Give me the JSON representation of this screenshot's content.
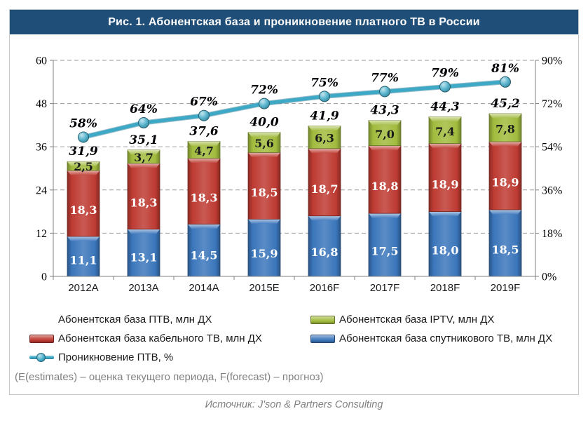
{
  "title": "Рис. 1. Абонентская база и проникновение платного ТВ в России",
  "footnote": "(E(estimates) – оценка текущего периода, F(forecast) – прогноз)",
  "source": "Источник: J'son & Partners Consulting",
  "colors": {
    "banner": "#1F4E79",
    "satellite": "#3B76BB",
    "cable": "#BE3B32",
    "iptv": "#A1BB3D",
    "line": "#3EA9C7",
    "grid": "#9B9B9B",
    "axis": "#808080",
    "border": "#C8C8C8",
    "muted_text": "#808080"
  },
  "chart_data": {
    "type": "bar",
    "stacked": true,
    "overlay": "line",
    "categories": [
      "2012A",
      "2013A",
      "2014A",
      "2015E",
      "2016F",
      "2017F",
      "2018F",
      "2019F"
    ],
    "series": [
      {
        "key": "satellite",
        "name": "Абонентская база спутникового ТВ, млн ДХ",
        "values": [
          11.1,
          13.1,
          14.5,
          15.9,
          16.8,
          17.5,
          18.0,
          18.5
        ]
      },
      {
        "key": "cable",
        "name": "Абонентская база кабельного ТВ, млн ДХ",
        "values": [
          18.3,
          18.3,
          18.3,
          18.5,
          18.7,
          18.8,
          18.9,
          18.9
        ]
      },
      {
        "key": "iptv",
        "name": "Абонентская база IPTV, млн ДХ",
        "values": [
          2.5,
          3.7,
          4.7,
          5.6,
          6.3,
          7.0,
          7.4,
          7.8
        ]
      }
    ],
    "totals": {
      "name": "Абонентская база ПТВ, млн ДХ",
      "values": [
        31.9,
        35.1,
        37.6,
        40.0,
        41.9,
        43.3,
        44.3,
        45.2
      ]
    },
    "line_series": {
      "name": "Проникновение ПТВ, %",
      "values": [
        58,
        64,
        67,
        72,
        75,
        77,
        79,
        81
      ]
    },
    "left_axis": {
      "ticks": [
        0,
        12,
        24,
        36,
        48,
        60
      ],
      "max": 60
    },
    "right_axis": {
      "ticks": [
        "0%",
        "18%",
        "36%",
        "54%",
        "72%",
        "90%"
      ],
      "max": 90
    },
    "grid": "dashed horizontal",
    "legend_position": "bottom"
  },
  "legend": {
    "items": [
      {
        "key": "total",
        "label": "Абонентская база ПТВ, млн ДХ",
        "swatch": "none"
      },
      {
        "key": "iptv",
        "label": "Абонентская база IPTV, млн ДХ",
        "swatch": "green"
      },
      {
        "key": "cable",
        "label": "Абонентская база кабельного ТВ, млн ДХ",
        "swatch": "red"
      },
      {
        "key": "satellite",
        "label": "Абонентская база спутникового ТВ, млн ДХ",
        "swatch": "blue"
      },
      {
        "key": "line",
        "label": "Проникновение ПТВ, %",
        "swatch": "line"
      }
    ]
  }
}
